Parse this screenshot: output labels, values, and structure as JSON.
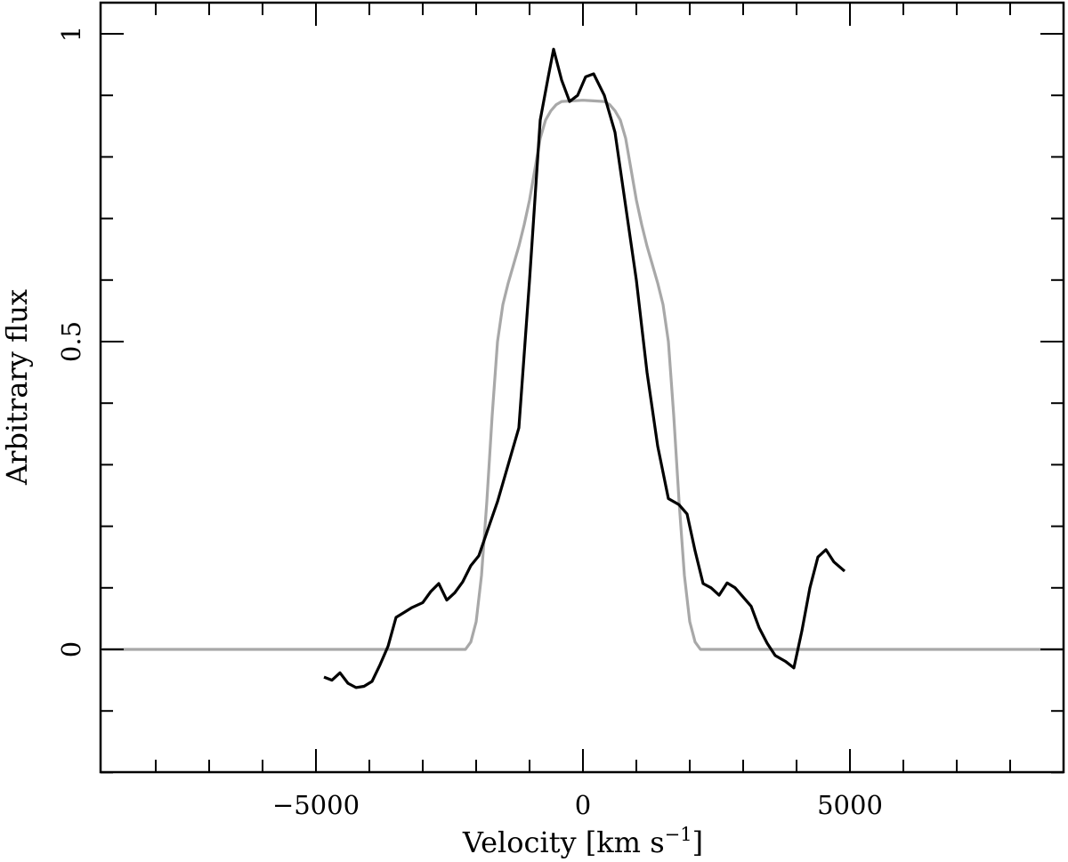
{
  "chart_data": {
    "type": "line",
    "xlabel": "Velocity [km s",
    "xlabel_superscript": "−1",
    "xlabel_suffix": "]",
    "ylabel": "Arbitrary flux",
    "xlim": [
      -9000,
      9000
    ],
    "ylim": [
      -0.2,
      1.05
    ],
    "x_ticks": [
      {
        "value": -5000,
        "label": "−5000"
      },
      {
        "value": 0,
        "label": "0"
      },
      {
        "value": 5000,
        "label": "5000"
      }
    ],
    "x_minor_step": 1000,
    "y_ticks": [
      {
        "value": 0,
        "label": "0"
      },
      {
        "value": 0.5,
        "label": "0.5"
      },
      {
        "value": 1,
        "label": "1"
      }
    ],
    "y_minor_step": 0.1,
    "grid": false,
    "legend": "none",
    "series": [
      {
        "color": "#000000",
        "points": [
          [
            -4850,
            -0.045
          ],
          [
            -4700,
            -0.05
          ],
          [
            -4550,
            -0.038
          ],
          [
            -4400,
            -0.055
          ],
          [
            -4250,
            -0.062
          ],
          [
            -4100,
            -0.06
          ],
          [
            -3950,
            -0.052
          ],
          [
            -3800,
            -0.025
          ],
          [
            -3650,
            0.005
          ],
          [
            -3500,
            0.052
          ],
          [
            -3350,
            0.06
          ],
          [
            -3200,
            0.068
          ],
          [
            -3000,
            0.076
          ],
          [
            -2850,
            0.094
          ],
          [
            -2700,
            0.107
          ],
          [
            -2550,
            0.08
          ],
          [
            -2400,
            0.092
          ],
          [
            -2250,
            0.11
          ],
          [
            -2100,
            0.136
          ],
          [
            -1950,
            0.152
          ],
          [
            -1800,
            0.19
          ],
          [
            -1600,
            0.24
          ],
          [
            -1400,
            0.3
          ],
          [
            -1200,
            0.36
          ],
          [
            -1000,
            0.6
          ],
          [
            -800,
            0.86
          ],
          [
            -650,
            0.93
          ],
          [
            -550,
            0.975
          ],
          [
            -400,
            0.925
          ],
          [
            -250,
            0.89
          ],
          [
            -100,
            0.9
          ],
          [
            50,
            0.93
          ],
          [
            200,
            0.935
          ],
          [
            400,
            0.9
          ],
          [
            600,
            0.84
          ],
          [
            800,
            0.72
          ],
          [
            1000,
            0.6
          ],
          [
            1200,
            0.45
          ],
          [
            1400,
            0.33
          ],
          [
            1600,
            0.245
          ],
          [
            1800,
            0.235
          ],
          [
            1950,
            0.22
          ],
          [
            2100,
            0.16
          ],
          [
            2250,
            0.107
          ],
          [
            2400,
            0.1
          ],
          [
            2550,
            0.088
          ],
          [
            2700,
            0.108
          ],
          [
            2850,
            0.1
          ],
          [
            3000,
            0.085
          ],
          [
            3150,
            0.07
          ],
          [
            3300,
            0.035
          ],
          [
            3450,
            0.01
          ],
          [
            3600,
            -0.01
          ],
          [
            3800,
            -0.02
          ],
          [
            3950,
            -0.03
          ],
          [
            4100,
            0.03
          ],
          [
            4250,
            0.1
          ],
          [
            4400,
            0.15
          ],
          [
            4550,
            0.162
          ],
          [
            4700,
            0.142
          ],
          [
            4900,
            0.127
          ]
        ]
      },
      {
        "color": "#a8a8a8",
        "points": [
          [
            -9000,
            0
          ],
          [
            -2200,
            0
          ],
          [
            -2100,
            0.012
          ],
          [
            -2000,
            0.045
          ],
          [
            -1900,
            0.12
          ],
          [
            -1800,
            0.24
          ],
          [
            -1700,
            0.38
          ],
          [
            -1600,
            0.5
          ],
          [
            -1500,
            0.56
          ],
          [
            -1400,
            0.595
          ],
          [
            -1300,
            0.625
          ],
          [
            -1200,
            0.655
          ],
          [
            -1100,
            0.69
          ],
          [
            -1000,
            0.73
          ],
          [
            -900,
            0.78
          ],
          [
            -800,
            0.83
          ],
          [
            -700,
            0.86
          ],
          [
            -600,
            0.875
          ],
          [
            -500,
            0.885
          ],
          [
            -400,
            0.89
          ],
          [
            -200,
            0.891
          ],
          [
            0,
            0.892
          ],
          [
            200,
            0.891
          ],
          [
            400,
            0.89
          ],
          [
            500,
            0.885
          ],
          [
            600,
            0.875
          ],
          [
            700,
            0.86
          ],
          [
            800,
            0.83
          ],
          [
            900,
            0.78
          ],
          [
            1000,
            0.73
          ],
          [
            1100,
            0.69
          ],
          [
            1200,
            0.655
          ],
          [
            1300,
            0.625
          ],
          [
            1400,
            0.595
          ],
          [
            1500,
            0.56
          ],
          [
            1600,
            0.5
          ],
          [
            1700,
            0.38
          ],
          [
            1800,
            0.24
          ],
          [
            1900,
            0.12
          ],
          [
            2000,
            0.045
          ],
          [
            2100,
            0.012
          ],
          [
            2200,
            0
          ],
          [
            9000,
            0
          ]
        ]
      }
    ]
  }
}
